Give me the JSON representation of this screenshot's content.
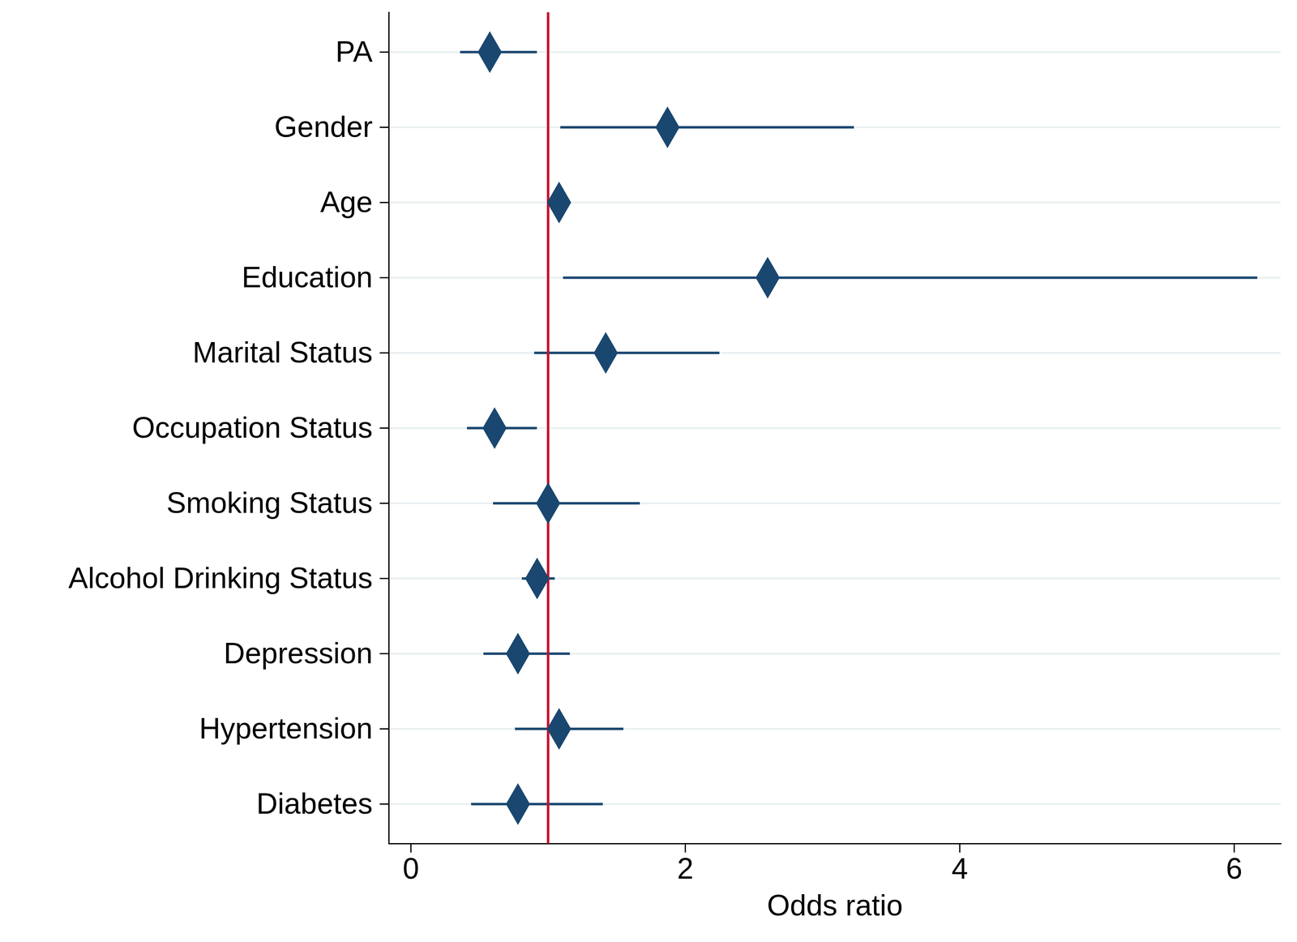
{
  "chart_data": {
    "type": "forest",
    "xlabel": "Odds ratio",
    "categories": [
      "PA",
      "Gender",
      "Age",
      "Education",
      "Marital Status",
      "Occupation Status",
      "Smoking Status",
      "Alcohol Drinking Status",
      "Depression",
      "Hypertension",
      "Diabetes"
    ],
    "values": [
      0.575,
      1.87,
      1.08,
      2.6,
      1.42,
      0.61,
      1.0,
      0.92,
      0.78,
      1.08,
      0.78
    ],
    "ci_lower": [
      0.36,
      1.09,
      1.05,
      1.11,
      0.9,
      0.41,
      0.6,
      0.81,
      0.53,
      0.76,
      0.44
    ],
    "ci_upper": [
      0.92,
      3.23,
      1.12,
      6.17,
      2.25,
      0.92,
      1.67,
      1.05,
      1.16,
      1.55,
      1.4
    ],
    "reference_line": 1,
    "reference_color": "#c8102e",
    "color": "#1a476f",
    "marker": "diamond",
    "xlim": [
      -0.16,
      6.34
    ],
    "xticks": [
      0,
      2,
      4,
      6
    ],
    "grid": true
  }
}
